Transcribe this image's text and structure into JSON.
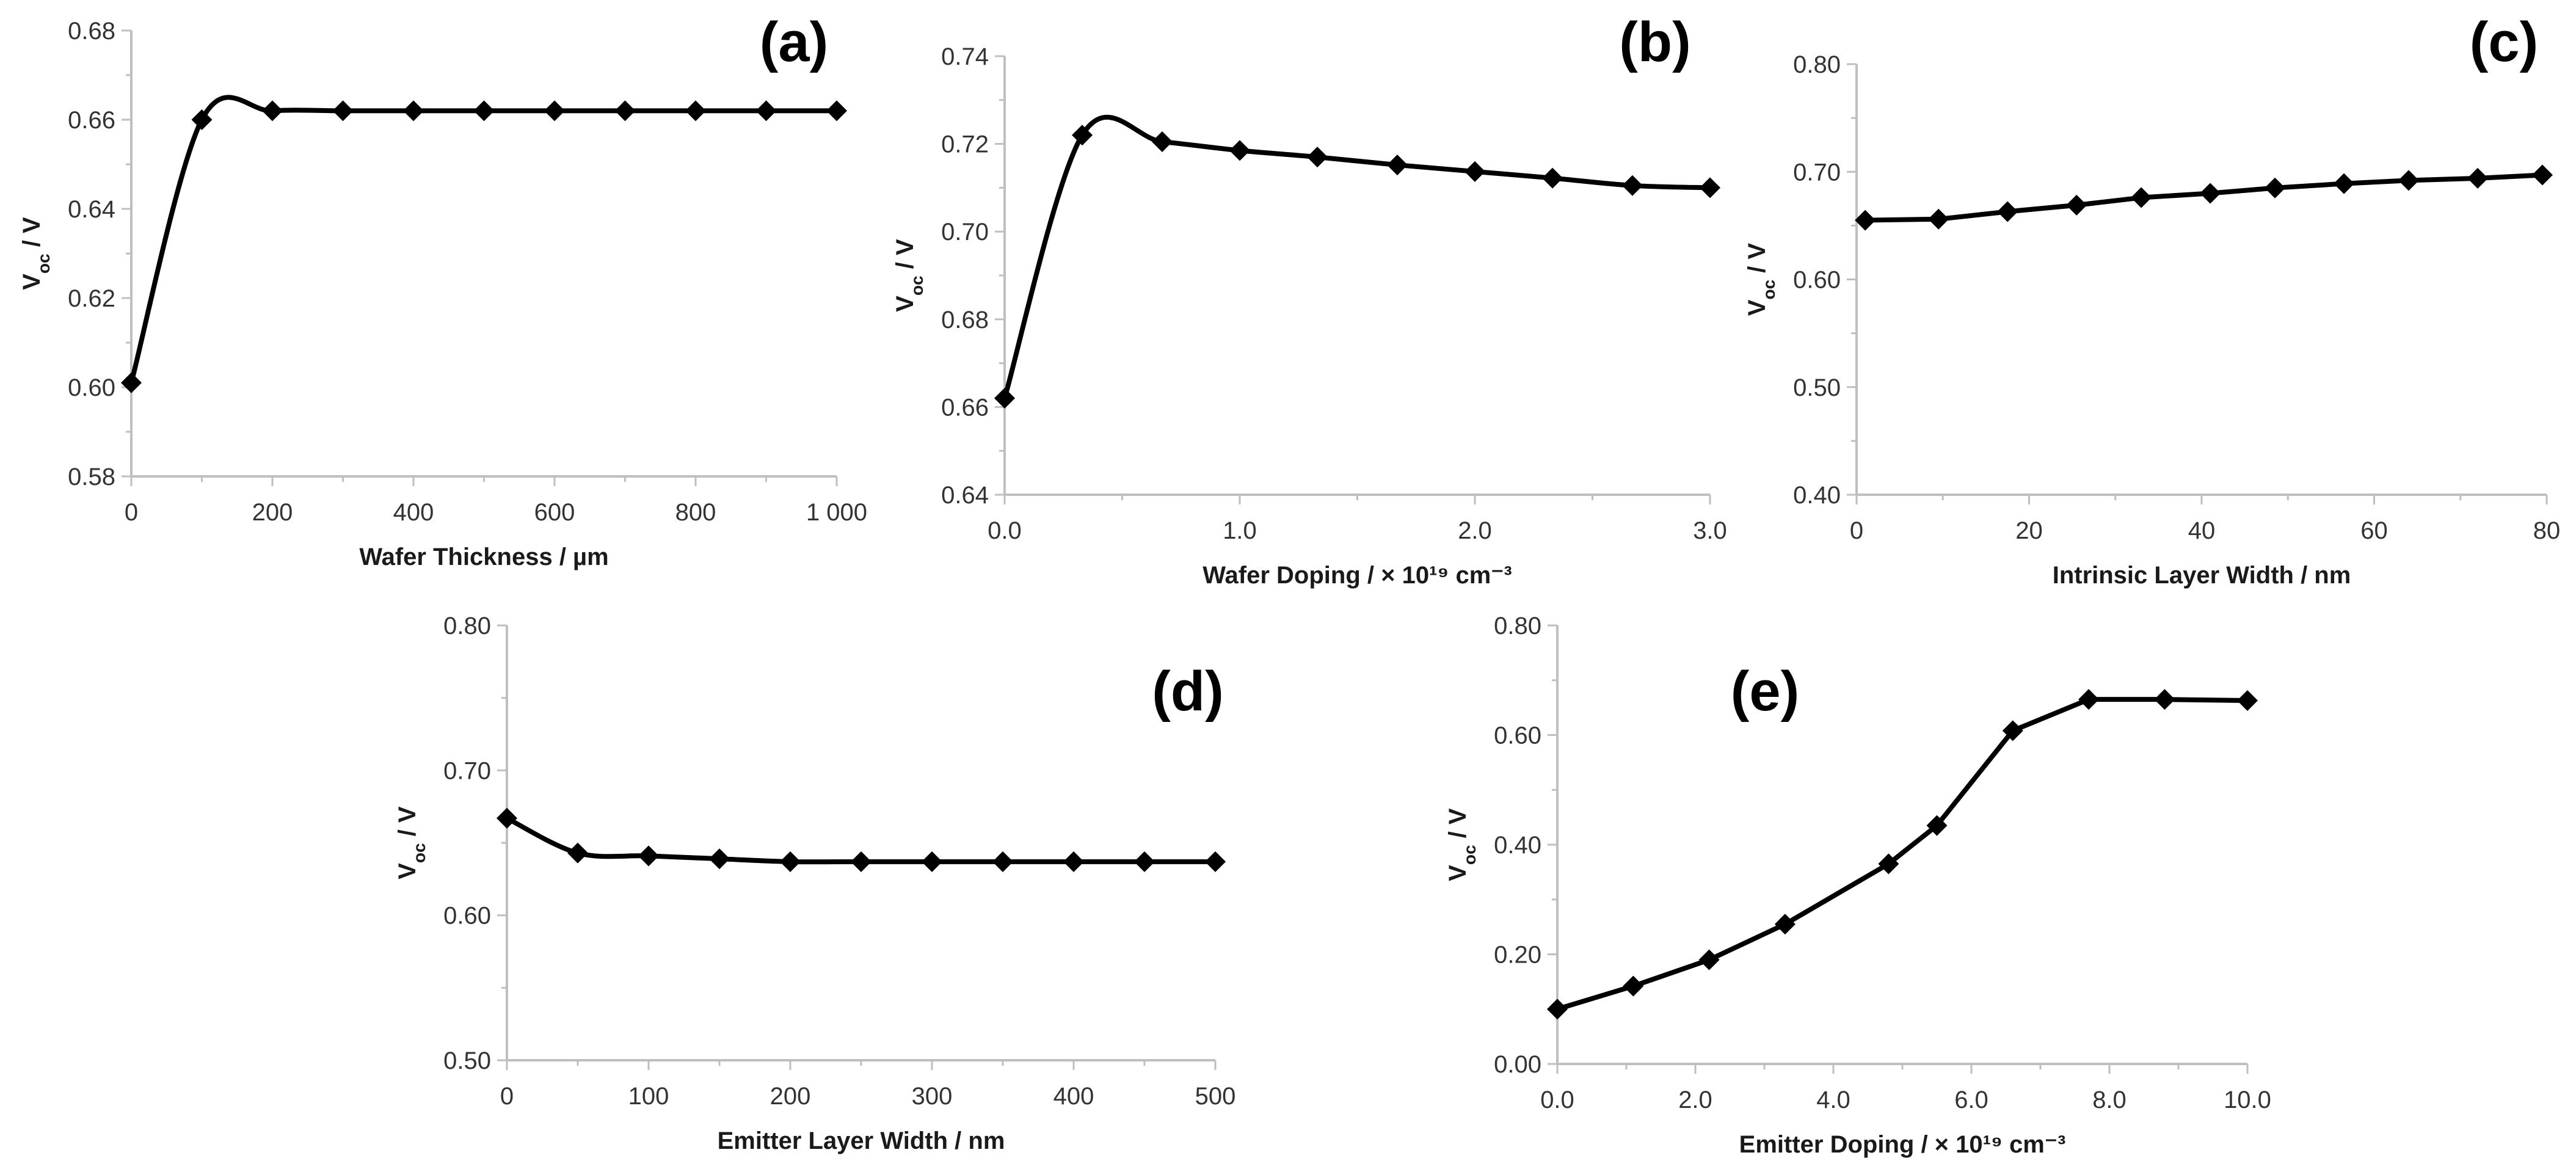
{
  "chart_data": [
    {
      "id": "a",
      "type": "line",
      "panel_label": "(a)",
      "smooth": true,
      "xlabel": "Wafer Thickness / µm",
      "ylabel_main": "V",
      "ylabel_sub": "oc",
      "ylabel_tail": " / V",
      "xlim": [
        0,
        1000
      ],
      "ylim": [
        0.58,
        0.68
      ],
      "xticks": [
        0,
        200,
        400,
        600,
        800,
        1000
      ],
      "xtick_labels": [
        "0",
        "200",
        "400",
        "600",
        "800",
        "1 000"
      ],
      "yticks": [
        0.58,
        0.6,
        0.62,
        0.64,
        0.66,
        0.68
      ],
      "ytick_labels": [
        "0.58",
        "0.60",
        "0.62",
        "0.64",
        "0.66",
        "0.68"
      ],
      "x": [
        0,
        100,
        200,
        300,
        400,
        500,
        600,
        700,
        800,
        900,
        1000
      ],
      "y": [
        0.601,
        0.66,
        0.662,
        0.662,
        0.662,
        0.662,
        0.662,
        0.662,
        0.662,
        0.662,
        0.662
      ]
    },
    {
      "id": "b",
      "type": "line",
      "panel_label": "(b)",
      "smooth": true,
      "xlabel": "Wafer Doping / × 10¹⁹ cm⁻³",
      "ylabel_main": "V",
      "ylabel_sub": "oc",
      "ylabel_tail": " / V",
      "xlim": [
        0,
        3.0
      ],
      "ylim": [
        0.64,
        0.74
      ],
      "xticks": [
        0,
        1.0,
        2.0,
        3.0
      ],
      "xtick_labels": [
        "0.0",
        "1.0",
        "2.0",
        "3.0"
      ],
      "yticks": [
        0.64,
        0.66,
        0.68,
        0.7,
        0.72,
        0.74
      ],
      "ytick_labels": [
        "0.64",
        "0.66",
        "0.68",
        "0.70",
        "0.72",
        "0.74"
      ],
      "x": [
        0.0,
        0.33,
        0.67,
        1.0,
        1.33,
        1.67,
        2.0,
        2.33,
        2.67,
        3.0
      ],
      "y": [
        0.662,
        0.722,
        0.7205,
        0.7185,
        0.717,
        0.7152,
        0.7137,
        0.7122,
        0.7105,
        0.71
      ]
    },
    {
      "id": "c",
      "type": "line",
      "panel_label": "(c)",
      "smooth": false,
      "xlabel": "Intrinsic Layer Width / nm",
      "ylabel_main": "V",
      "ylabel_sub": "oc",
      "ylabel_tail": " / V",
      "xlim": [
        0,
        80
      ],
      "ylim": [
        0.4,
        0.8
      ],
      "xticks": [
        0,
        20,
        40,
        60,
        80
      ],
      "xtick_labels": [
        "0",
        "20",
        "40",
        "60",
        "80"
      ],
      "yticks": [
        0.4,
        0.5,
        0.6,
        0.7,
        0.8
      ],
      "ytick_labels": [
        "0.40",
        "0.50",
        "0.60",
        "0.70",
        "0.80"
      ],
      "x": [
        1,
        9.5,
        17.5,
        25.5,
        33,
        41,
        48.5,
        56.5,
        64,
        72,
        79.5
      ],
      "y": [
        0.655,
        0.656,
        0.663,
        0.669,
        0.676,
        0.68,
        0.685,
        0.689,
        0.692,
        0.694,
        0.697
      ]
    },
    {
      "id": "d",
      "type": "line",
      "panel_label": "(d)",
      "smooth": true,
      "xlabel": "Emitter Layer Width / nm",
      "ylabel_main": "V",
      "ylabel_sub": "oc",
      "ylabel_tail": " / V",
      "xlim": [
        0,
        500
      ],
      "ylim": [
        0.5,
        0.8
      ],
      "xticks": [
        0,
        100,
        200,
        300,
        400,
        500
      ],
      "xtick_labels": [
        "0",
        "100",
        "200",
        "300",
        "400",
        "500"
      ],
      "yticks": [
        0.5,
        0.6,
        0.7,
        0.8
      ],
      "ytick_labels": [
        "0.50",
        "0.60",
        "0.70",
        "0.80"
      ],
      "x": [
        0,
        50,
        100,
        150,
        200,
        250,
        300,
        350,
        400,
        450,
        500
      ],
      "y": [
        0.667,
        0.643,
        0.641,
        0.639,
        0.637,
        0.637,
        0.637,
        0.637,
        0.637,
        0.637,
        0.637
      ]
    },
    {
      "id": "e",
      "type": "line",
      "panel_label": "(e)",
      "smooth": false,
      "xlabel": "Emitter Doping / × 10¹⁹ cm⁻³",
      "ylabel_main": "V",
      "ylabel_sub": "oc",
      "ylabel_tail": " / V",
      "xlim": [
        0,
        10.0
      ],
      "ylim": [
        0.0,
        0.8
      ],
      "xticks": [
        0,
        2.0,
        4.0,
        6.0,
        8.0,
        10.0
      ],
      "xtick_labels": [
        "0.0",
        "2.0",
        "4.0",
        "6.0",
        "8.0",
        "10.0"
      ],
      "yticks": [
        0.0,
        0.2,
        0.4,
        0.6,
        0.8
      ],
      "ytick_labels": [
        "0.00",
        "0.20",
        "0.40",
        "0.60",
        "0.80"
      ],
      "x": [
        0.0,
        1.1,
        2.2,
        3.3,
        4.8,
        5.5,
        6.6,
        7.7,
        8.8,
        10.0
      ],
      "y": [
        0.1,
        0.142,
        0.19,
        0.255,
        0.365,
        0.435,
        0.608,
        0.665,
        0.665,
        0.663
      ]
    }
  ]
}
